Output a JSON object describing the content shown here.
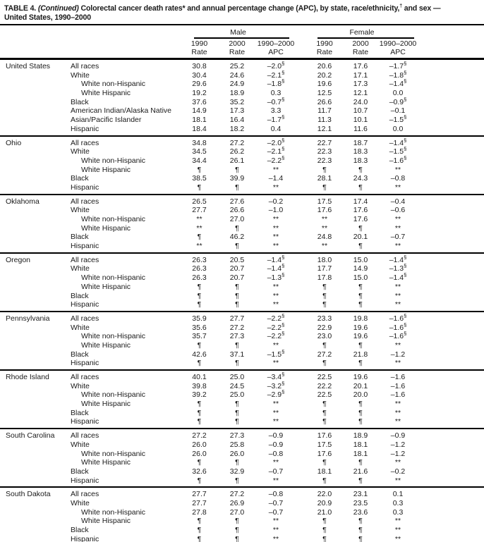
{
  "title": {
    "prefix": "TABLE 4. ",
    "continued": "(Continued)",
    "part_rates": " Colorectal cancer death rates",
    "rates_marker": "*",
    "part_mid": " and annual percentage change (APC), by state, race/ethnicity,",
    "ethnicity_marker": "†",
    "part_end": " and sex —",
    "line2": "United States, 1990–2000"
  },
  "table": {
    "header": {
      "male_label": "Male",
      "female_label": "Female",
      "cols": [
        {
          "l1": "1990",
          "l2": "Rate"
        },
        {
          "l1": "2000",
          "l2": "Rate"
        },
        {
          "l1": "1990–2000",
          "l2": "APC"
        },
        {
          "l1": "1990",
          "l2": "Rate"
        },
        {
          "l1": "2000",
          "l2": "Rate"
        },
        {
          "l1": "1990–2000",
          "l2": "APC"
        }
      ]
    },
    "sections": [
      {
        "state": "United States",
        "rows": [
          {
            "race": "All races",
            "indent": false,
            "values": [
              "30.8",
              "25.2",
              "–2.0§",
              "20.6",
              "17.6",
              "–1.7§"
            ]
          },
          {
            "race": "White",
            "indent": false,
            "values": [
              "30.4",
              "24.6",
              "–2.1§",
              "20.2",
              "17.1",
              "–1.8§"
            ]
          },
          {
            "race": "White non-Hispanic",
            "indent": true,
            "values": [
              "29.6",
              "24.9",
              "–1.8§",
              "19.6",
              "17.3",
              "–1.4§"
            ]
          },
          {
            "race": "White Hispanic",
            "indent": true,
            "values": [
              "19.2",
              "18.9",
              "0.3",
              "12.5",
              "12.1",
              "0.0"
            ]
          },
          {
            "race": "Black",
            "indent": false,
            "values": [
              "37.6",
              "35.2",
              "–0.7§",
              "26.6",
              "24.0",
              "–0.9§"
            ]
          },
          {
            "race": "American Indian/Alaska Native",
            "indent": false,
            "values": [
              "14.9",
              "17.3",
              "3.3",
              "11.7",
              "10.7",
              "–0.1"
            ]
          },
          {
            "race": "Asian/Pacific Islander",
            "indent": false,
            "values": [
              "18.1",
              "16.4",
              "–1.7§",
              "11.3",
              "10.1",
              "–1.5§"
            ]
          },
          {
            "race": "Hispanic",
            "indent": false,
            "values": [
              "18.4",
              "18.2",
              "0.4",
              "12.1",
              "11.6",
              "0.0"
            ]
          }
        ]
      },
      {
        "state": "Ohio",
        "rows": [
          {
            "race": "All races",
            "indent": false,
            "values": [
              "34.8",
              "27.2",
              "–2.0§",
              "22.7",
              "18.7",
              "–1.4§"
            ]
          },
          {
            "race": "White",
            "indent": false,
            "values": [
              "34.5",
              "26.2",
              "–2.1§",
              "22.3",
              "18.3",
              "–1.5§"
            ]
          },
          {
            "race": "White non-Hispanic",
            "indent": true,
            "values": [
              "34.4",
              "26.1",
              "–2.2§",
              "22.3",
              "18.3",
              "–1.6§"
            ]
          },
          {
            "race": "White Hispanic",
            "indent": true,
            "values": [
              "¶",
              "¶",
              "**",
              "¶",
              "¶",
              "**"
            ]
          },
          {
            "race": "Black",
            "indent": false,
            "values": [
              "38.5",
              "39.9",
              "–1.4",
              "28.1",
              "24.3",
              "–0.8"
            ]
          },
          {
            "race": "Hispanic",
            "indent": false,
            "values": [
              "¶",
              "¶",
              "**",
              "¶",
              "¶",
              "**"
            ]
          }
        ]
      },
      {
        "state": "Oklahoma",
        "rows": [
          {
            "race": "All races",
            "indent": false,
            "values": [
              "26.5",
              "27.6",
              "–0.2",
              "17.5",
              "17.4",
              "–0.4"
            ]
          },
          {
            "race": "White",
            "indent": false,
            "values": [
              "27.7",
              "26.6",
              "–1.0",
              "17.6",
              "17.6",
              "–0.6"
            ]
          },
          {
            "race": "White non-Hispanic",
            "indent": true,
            "values": [
              "**",
              "27.0",
              "**",
              "**",
              "17.6",
              "**"
            ]
          },
          {
            "race": "White Hispanic",
            "indent": true,
            "values": [
              "**",
              "¶",
              "**",
              "**",
              "¶",
              "**"
            ]
          },
          {
            "race": "Black",
            "indent": false,
            "values": [
              "¶",
              "46.2",
              "**",
              "24.8",
              "20.1",
              "–0.7"
            ]
          },
          {
            "race": "Hispanic",
            "indent": false,
            "values": [
              "**",
              "¶",
              "**",
              "**",
              "¶",
              "**"
            ]
          }
        ]
      },
      {
        "state": "Oregon",
        "rows": [
          {
            "race": "All races",
            "indent": false,
            "values": [
              "26.3",
              "20.5",
              "–1.4§",
              "18.0",
              "15.0",
              "–1.4§"
            ]
          },
          {
            "race": "White",
            "indent": false,
            "values": [
              "26.3",
              "20.7",
              "–1.4§",
              "17.7",
              "14.9",
              "–1.3§"
            ]
          },
          {
            "race": "White non-Hispanic",
            "indent": true,
            "values": [
              "26.3",
              "20.7",
              "–1.3§",
              "17.8",
              "15.0",
              "–1.4§"
            ]
          },
          {
            "race": "White Hispanic",
            "indent": true,
            "values": [
              "¶",
              "¶",
              "**",
              "¶",
              "¶",
              "**"
            ]
          },
          {
            "race": "Black",
            "indent": false,
            "values": [
              "¶",
              "¶",
              "**",
              "¶",
              "¶",
              "**"
            ]
          },
          {
            "race": "Hispanic",
            "indent": false,
            "values": [
              "¶",
              "¶",
              "**",
              "¶",
              "¶",
              "**"
            ]
          }
        ]
      },
      {
        "state": "Pennsylvania",
        "rows": [
          {
            "race": "All races",
            "indent": false,
            "values": [
              "35.9",
              "27.7",
              "–2.2§",
              "23.3",
              "19.8",
              "–1.6§"
            ]
          },
          {
            "race": "White",
            "indent": false,
            "values": [
              "35.6",
              "27.2",
              "–2.2§",
              "22.9",
              "19.6",
              "–1.6§"
            ]
          },
          {
            "race": "White non-Hispanic",
            "indent": true,
            "values": [
              "35.7",
              "27.3",
              "–2.2§",
              "23.0",
              "19.6",
              "–1.6§"
            ]
          },
          {
            "race": "White Hispanic",
            "indent": true,
            "values": [
              "¶",
              "¶",
              "**",
              "¶",
              "¶",
              "**"
            ]
          },
          {
            "race": "Black",
            "indent": false,
            "values": [
              "42.6",
              "37.1",
              "–1.5§",
              "27.2",
              "21.8",
              "–1.2"
            ]
          },
          {
            "race": "Hispanic",
            "indent": false,
            "values": [
              "¶",
              "¶",
              "**",
              "¶",
              "¶",
              "**"
            ]
          }
        ]
      },
      {
        "state": "Rhode Island",
        "rows": [
          {
            "race": "All races",
            "indent": false,
            "values": [
              "40.1",
              "25.0",
              "–3.4§",
              "22.5",
              "19.6",
              "–1.6"
            ]
          },
          {
            "race": "White",
            "indent": false,
            "values": [
              "39.8",
              "24.5",
              "–3.2§",
              "22.2",
              "20.1",
              "–1.6"
            ]
          },
          {
            "race": "White non-Hispanic",
            "indent": true,
            "values": [
              "39.2",
              "25.0",
              "–2.9§",
              "22.5",
              "20.0",
              "–1.6"
            ]
          },
          {
            "race": "White Hispanic",
            "indent": true,
            "values": [
              "¶",
              "¶",
              "**",
              "¶",
              "¶",
              "**"
            ]
          },
          {
            "race": "Black",
            "indent": false,
            "values": [
              "¶",
              "¶",
              "**",
              "¶",
              "¶",
              "**"
            ]
          },
          {
            "race": "Hispanic",
            "indent": false,
            "values": [
              "¶",
              "¶",
              "**",
              "¶",
              "¶",
              "**"
            ]
          }
        ]
      },
      {
        "state": "South Carolina",
        "rows": [
          {
            "race": "All races",
            "indent": false,
            "values": [
              "27.2",
              "27.3",
              "–0.9",
              "17.6",
              "18.9",
              "–0.9"
            ]
          },
          {
            "race": "White",
            "indent": false,
            "values": [
              "26.0",
              "25.8",
              "–0.9",
              "17.5",
              "18.1",
              "–1.2"
            ]
          },
          {
            "race": "White non-Hispanic",
            "indent": true,
            "values": [
              "26.0",
              "26.0",
              "–0.8",
              "17.6",
              "18.1",
              "–1.2"
            ]
          },
          {
            "race": "White Hispanic",
            "indent": true,
            "values": [
              "¶",
              "¶",
              "**",
              "¶",
              "¶",
              "**"
            ]
          },
          {
            "race": "Black",
            "indent": false,
            "values": [
              "32.6",
              "32.9",
              "–0.7",
              "18.1",
              "21.6",
              "–0.2"
            ]
          },
          {
            "race": "Hispanic",
            "indent": false,
            "values": [
              "¶",
              "¶",
              "**",
              "¶",
              "¶",
              "**"
            ]
          }
        ]
      },
      {
        "state": "South Dakota",
        "rows": [
          {
            "race": "All races",
            "indent": false,
            "values": [
              "27.7",
              "27.2",
              "–0.8",
              "22.0",
              "23.1",
              "0.1"
            ]
          },
          {
            "race": "White",
            "indent": false,
            "values": [
              "27.7",
              "26.9",
              "–0.7",
              "20.9",
              "23.5",
              "0.3"
            ]
          },
          {
            "race": "White non-Hispanic",
            "indent": true,
            "values": [
              "27.8",
              "27.0",
              "–0.7",
              "21.0",
              "23.6",
              "0.3"
            ]
          },
          {
            "race": "White Hispanic",
            "indent": true,
            "values": [
              "¶",
              "¶",
              "**",
              "¶",
              "¶",
              "**"
            ]
          },
          {
            "race": "Black",
            "indent": false,
            "values": [
              "¶",
              "¶",
              "**",
              "¶",
              "¶",
              "**"
            ]
          },
          {
            "race": "Hispanic",
            "indent": false,
            "values": [
              "¶",
              "¶",
              "**",
              "¶",
              "¶",
              "**"
            ]
          }
        ]
      }
    ]
  }
}
